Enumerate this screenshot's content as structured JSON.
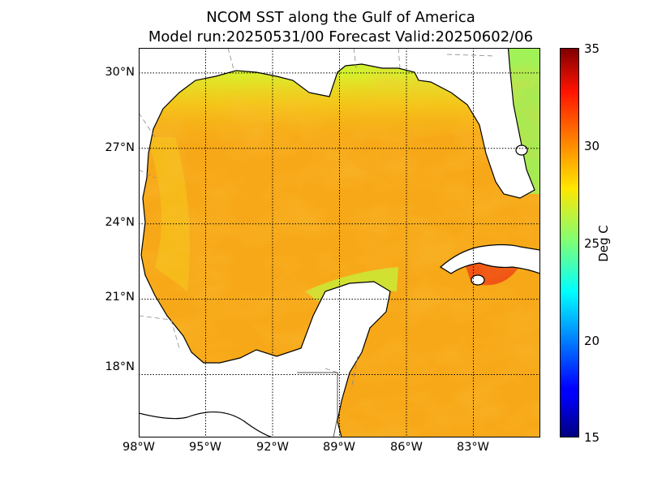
{
  "title": {
    "line1": "NCOM SST along the Gulf of America",
    "line2": "Model run:20250531/00 Forecast Valid:20250602/06"
  },
  "map": {
    "lon_labels": [
      "98°W",
      "95°W",
      "92°W",
      "89°W",
      "86°W",
      "83°W"
    ],
    "lat_labels": [
      "30°N",
      "27°N",
      "24°N",
      "21°N",
      "18°N"
    ],
    "lon_range": [
      -98,
      -80
    ],
    "lat_range": [
      15.5,
      31
    ],
    "colors": {
      "land": "#ffffff",
      "warm_sea": "#f9a313",
      "cool_shelf": "#c8f03a",
      "hot_spot": "#f25a10"
    }
  },
  "colorbar": {
    "label": "Deg C",
    "ticks": [
      "35",
      "30",
      "25",
      "20",
      "15"
    ],
    "range": [
      15,
      35
    ],
    "colormap": "jet"
  }
}
